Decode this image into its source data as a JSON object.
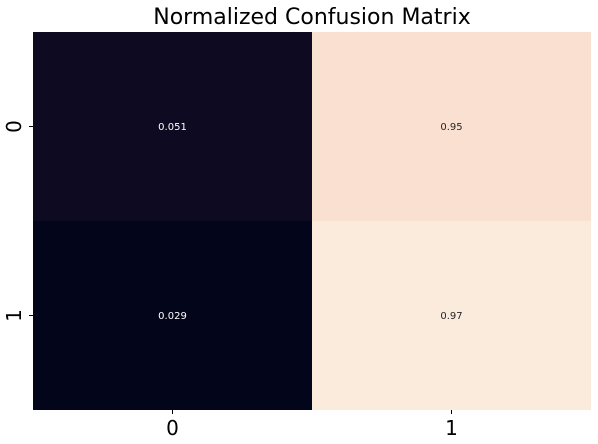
{
  "chart_data": {
    "type": "heatmap",
    "title": "Normalized Confusion Matrix",
    "x_categories": [
      "0",
      "1"
    ],
    "y_categories": [
      "0",
      "1"
    ],
    "values": [
      [
        0.051,
        0.95
      ],
      [
        0.029,
        0.97
      ]
    ],
    "value_labels": [
      [
        "0.051",
        "0.95"
      ],
      [
        "0.029",
        "0.97"
      ]
    ],
    "cell_colors": [
      [
        "#0d0a21",
        "#f9e0d0"
      ],
      [
        "#03051a",
        "#faebdd"
      ]
    ],
    "value_label_colors": [
      [
        "#ffffff",
        "#262626"
      ],
      [
        "#ffffff",
        "#262626"
      ]
    ],
    "colorbar": false,
    "grid": false
  }
}
